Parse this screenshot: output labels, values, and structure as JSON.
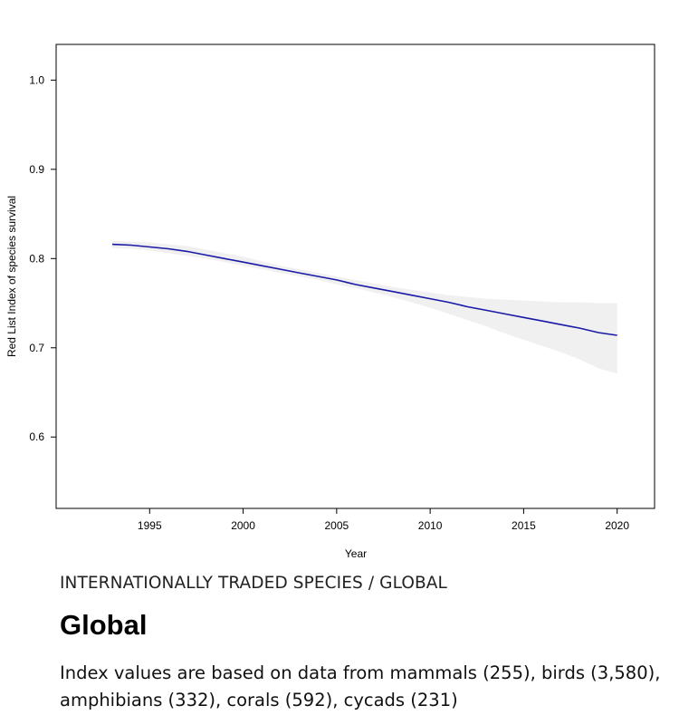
{
  "chart_data": {
    "type": "line",
    "title": "",
    "xlabel": "Year",
    "ylabel": "Red List Index of species survival",
    "xlim": [
      1990,
      2022
    ],
    "ylim": [
      0.52,
      1.04
    ],
    "xticks": [
      1995,
      2000,
      2005,
      2010,
      2015,
      2020
    ],
    "yticks": [
      0.6,
      0.7,
      0.8,
      0.9,
      1.0
    ],
    "ytick_labels": [
      "0.6",
      "0.7",
      "0.8",
      "0.9",
      "1.0"
    ],
    "grid": false,
    "legend": "none",
    "x": [
      1993,
      1994,
      1995,
      1996,
      1997,
      1998,
      1999,
      2000,
      2001,
      2002,
      2003,
      2004,
      2005,
      2006,
      2007,
      2008,
      2009,
      2010,
      2011,
      2012,
      2013,
      2014,
      2015,
      2016,
      2017,
      2018,
      2019,
      2020
    ],
    "series": [
      {
        "values": [
          0.816,
          0.815,
          0.813,
          0.811,
          0.808,
          0.804,
          0.8,
          0.796,
          0.792,
          0.788,
          0.784,
          0.78,
          0.776,
          0.771,
          0.767,
          0.763,
          0.759,
          0.755,
          0.751,
          0.746,
          0.742,
          0.738,
          0.734,
          0.73,
          0.726,
          0.722,
          0.717,
          0.714
        ],
        "lower": [
          0.812,
          0.811,
          0.809,
          0.806,
          0.803,
          0.8,
          0.796,
          0.792,
          0.788,
          0.784,
          0.78,
          0.776,
          0.771,
          0.767,
          0.762,
          0.757,
          0.751,
          0.745,
          0.738,
          0.731,
          0.724,
          0.716,
          0.709,
          0.702,
          0.695,
          0.687,
          0.677,
          0.671
        ],
        "upper": [
          0.82,
          0.819,
          0.818,
          0.816,
          0.814,
          0.81,
          0.806,
          0.802,
          0.797,
          0.792,
          0.788,
          0.784,
          0.78,
          0.776,
          0.772,
          0.768,
          0.765,
          0.762,
          0.759,
          0.757,
          0.755,
          0.754,
          0.753,
          0.752,
          0.751,
          0.751,
          0.75,
          0.75
        ],
        "color": "#1a1aa6",
        "band_color": "#f0f0f0"
      }
    ]
  },
  "caption": {
    "subtitle": "INTERNATIONALLY TRADED SPECIES / GLOBAL",
    "heading": "Global",
    "description": "Index values are based on data from mammals (255), birds (3,580), amphibians (332), corals (592), cycads (231)"
  }
}
